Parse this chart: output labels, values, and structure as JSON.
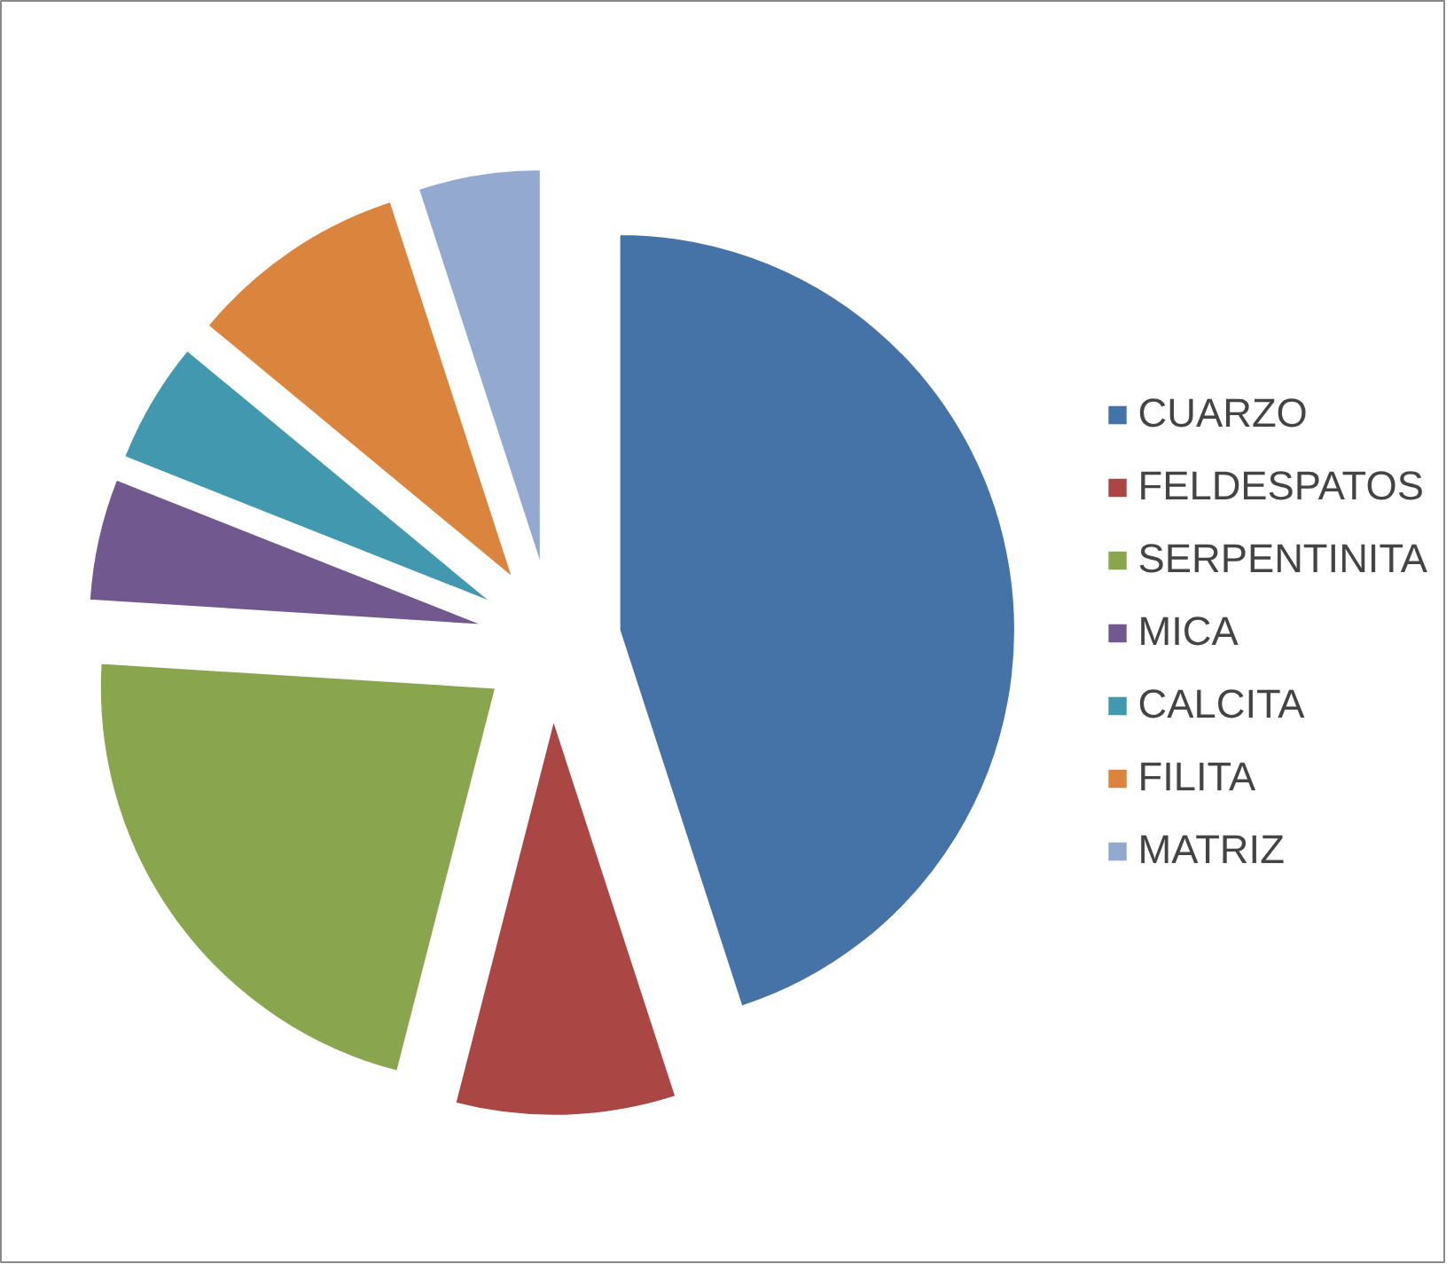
{
  "chart_data": {
    "type": "pie",
    "categories": [
      "CUARZO",
      "FELDESPATOS",
      "SERPENTINITA",
      "MICA",
      "CALCITA",
      "FILITA",
      "MATRIZ"
    ],
    "values": [
      45,
      9,
      22,
      5,
      5,
      9,
      5
    ],
    "colors": [
      "#4572a7",
      "#aa4643",
      "#89a54e",
      "#71588f",
      "#4198af",
      "#db843d",
      "#93a9cf"
    ],
    "legend": "right"
  }
}
